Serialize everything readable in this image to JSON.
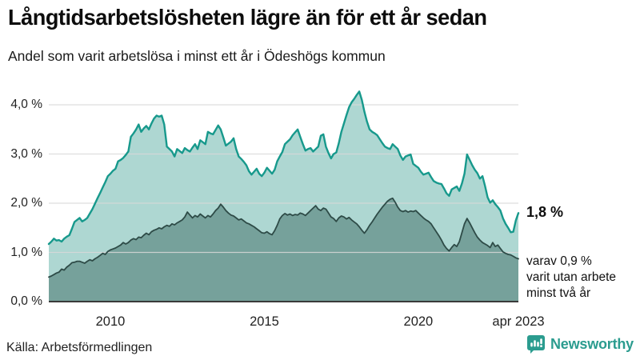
{
  "header": {
    "title": "Långtidsarbetslösheten lägre än för ett år sedan",
    "subtitle": "Andel som varit arbetslösa i minst ett år i Ödeshögs kommun"
  },
  "chart_data": {
    "type": "area",
    "title": "Långtidsarbetslösheten lägre än för ett år sedan",
    "subtitle": "Andel som varit arbetslösa i minst ett år i Ödeshögs kommun",
    "unit": "%",
    "x_start": "2008-01",
    "x_end": "2023-04",
    "months_total": 184,
    "ylim": [
      0,
      4.4
    ],
    "grid": true,
    "y_ticks": [
      {
        "label": "4,0 %",
        "value": 4
      },
      {
        "label": "3,0 %",
        "value": 3
      },
      {
        "label": "2,0 %",
        "value": 2
      },
      {
        "label": "1,0 %",
        "value": 1
      },
      {
        "label": "0,0 %",
        "value": 0
      }
    ],
    "x_ticks": [
      {
        "label": "2010",
        "month": 24
      },
      {
        "label": "2015",
        "month": 84
      },
      {
        "label": "2020",
        "month": 144
      },
      {
        "label": "apr 2023",
        "month": 183
      }
    ],
    "series": [
      {
        "name": "Arbetslösa minst ett år",
        "line_color": "#17998c",
        "fill_color": "#aed7d2",
        "line_width": 2.4,
        "values": [
          1.17,
          1.22,
          1.28,
          1.24,
          1.25,
          1.22,
          1.28,
          1.32,
          1.35,
          1.48,
          1.62,
          1.66,
          1.7,
          1.63,
          1.66,
          1.7,
          1.79,
          1.88,
          1.99,
          2.1,
          2.21,
          2.32,
          2.43,
          2.55,
          2.6,
          2.66,
          2.7,
          2.85,
          2.88,
          2.92,
          2.98,
          3.05,
          3.35,
          3.42,
          3.5,
          3.6,
          3.45,
          3.52,
          3.57,
          3.5,
          3.62,
          3.72,
          3.78,
          3.76,
          3.78,
          3.6,
          3.15,
          3.1,
          3.05,
          2.95,
          3.1,
          3.06,
          3.02,
          3.12,
          3.08,
          3.05,
          3.13,
          3.2,
          3.1,
          3.28,
          3.24,
          3.2,
          3.45,
          3.42,
          3.4,
          3.49,
          3.58,
          3.5,
          3.34,
          3.17,
          3.21,
          3.25,
          3.32,
          3.1,
          2.95,
          2.9,
          2.84,
          2.77,
          2.65,
          2.58,
          2.64,
          2.7,
          2.6,
          2.55,
          2.62,
          2.72,
          2.66,
          2.6,
          2.68,
          2.85,
          2.95,
          3.04,
          3.2,
          3.25,
          3.3,
          3.38,
          3.44,
          3.5,
          3.35,
          3.2,
          3.07,
          3.1,
          3.12,
          3.05,
          3.1,
          3.15,
          3.37,
          3.4,
          3.15,
          3.02,
          2.91,
          3.0,
          3.03,
          3.22,
          3.45,
          3.62,
          3.79,
          3.95,
          4.05,
          4.12,
          4.2,
          4.27,
          4.1,
          3.86,
          3.66,
          3.5,
          3.45,
          3.42,
          3.38,
          3.3,
          3.22,
          3.15,
          3.12,
          3.1,
          3.2,
          3.15,
          3.1,
          2.97,
          2.88,
          2.95,
          2.97,
          2.99,
          2.8,
          2.76,
          2.72,
          2.64,
          2.58,
          2.6,
          2.62,
          2.53,
          2.45,
          2.42,
          2.4,
          2.39,
          2.3,
          2.2,
          2.15,
          2.28,
          2.31,
          2.34,
          2.25,
          2.4,
          2.6,
          2.99,
          2.88,
          2.77,
          2.68,
          2.61,
          2.5,
          2.55,
          2.35,
          2.12,
          2.01,
          2.06,
          1.98,
          1.92,
          1.85,
          1.69,
          1.58,
          1.5,
          1.41,
          1.42,
          1.65,
          1.8
        ]
      },
      {
        "name": "Arbetslösa minst två år",
        "line_color": "#2e4b47",
        "fill_color": "#76a19b",
        "line_width": 1.8,
        "values": [
          0.5,
          0.52,
          0.55,
          0.58,
          0.6,
          0.66,
          0.64,
          0.7,
          0.74,
          0.79,
          0.8,
          0.82,
          0.82,
          0.8,
          0.78,
          0.82,
          0.85,
          0.83,
          0.87,
          0.9,
          0.94,
          0.98,
          0.96,
          1.02,
          1.05,
          1.07,
          1.09,
          1.12,
          1.15,
          1.2,
          1.17,
          1.2,
          1.25,
          1.28,
          1.26,
          1.31,
          1.3,
          1.35,
          1.39,
          1.36,
          1.42,
          1.45,
          1.47,
          1.5,
          1.48,
          1.52,
          1.55,
          1.53,
          1.58,
          1.56,
          1.6,
          1.63,
          1.66,
          1.72,
          1.82,
          1.76,
          1.7,
          1.75,
          1.72,
          1.78,
          1.74,
          1.7,
          1.75,
          1.72,
          1.78,
          1.85,
          1.9,
          1.98,
          1.92,
          1.85,
          1.8,
          1.76,
          1.74,
          1.7,
          1.66,
          1.68,
          1.64,
          1.6,
          1.58,
          1.55,
          1.52,
          1.48,
          1.44,
          1.4,
          1.39,
          1.42,
          1.38,
          1.36,
          1.44,
          1.55,
          1.68,
          1.75,
          1.79,
          1.76,
          1.78,
          1.75,
          1.77,
          1.76,
          1.8,
          1.78,
          1.75,
          1.8,
          1.85,
          1.9,
          1.95,
          1.88,
          1.85,
          1.9,
          1.88,
          1.8,
          1.72,
          1.69,
          1.63,
          1.7,
          1.74,
          1.72,
          1.68,
          1.71,
          1.66,
          1.62,
          1.58,
          1.52,
          1.45,
          1.39,
          1.46,
          1.55,
          1.62,
          1.7,
          1.78,
          1.85,
          1.92,
          1.98,
          2.04,
          2.08,
          2.1,
          2.02,
          1.92,
          1.85,
          1.83,
          1.85,
          1.82,
          1.84,
          1.83,
          1.85,
          1.8,
          1.75,
          1.7,
          1.66,
          1.63,
          1.58,
          1.5,
          1.42,
          1.34,
          1.25,
          1.15,
          1.08,
          1.03,
          1.1,
          1.16,
          1.12,
          1.22,
          1.4,
          1.58,
          1.69,
          1.6,
          1.5,
          1.4,
          1.31,
          1.25,
          1.2,
          1.17,
          1.14,
          1.1,
          1.2,
          1.12,
          1.15,
          1.08,
          1.01,
          0.98,
          0.96,
          0.95,
          0.92,
          0.89,
          0.87
        ]
      }
    ],
    "annotations": {
      "latest_total": "1,8 %",
      "latest_two_year_line1": "varav 0,9 %",
      "latest_two_year_line2": "varit utan arbete",
      "latest_two_year_line3": "minst två år"
    },
    "colors": {
      "grid": "#d9d9d9",
      "axis": "#3a3a3a"
    }
  },
  "footer": {
    "source": "Källa: Arbetsförmedlingen",
    "brand": "Newsworthy",
    "brand_color": "#2b9c8f"
  }
}
